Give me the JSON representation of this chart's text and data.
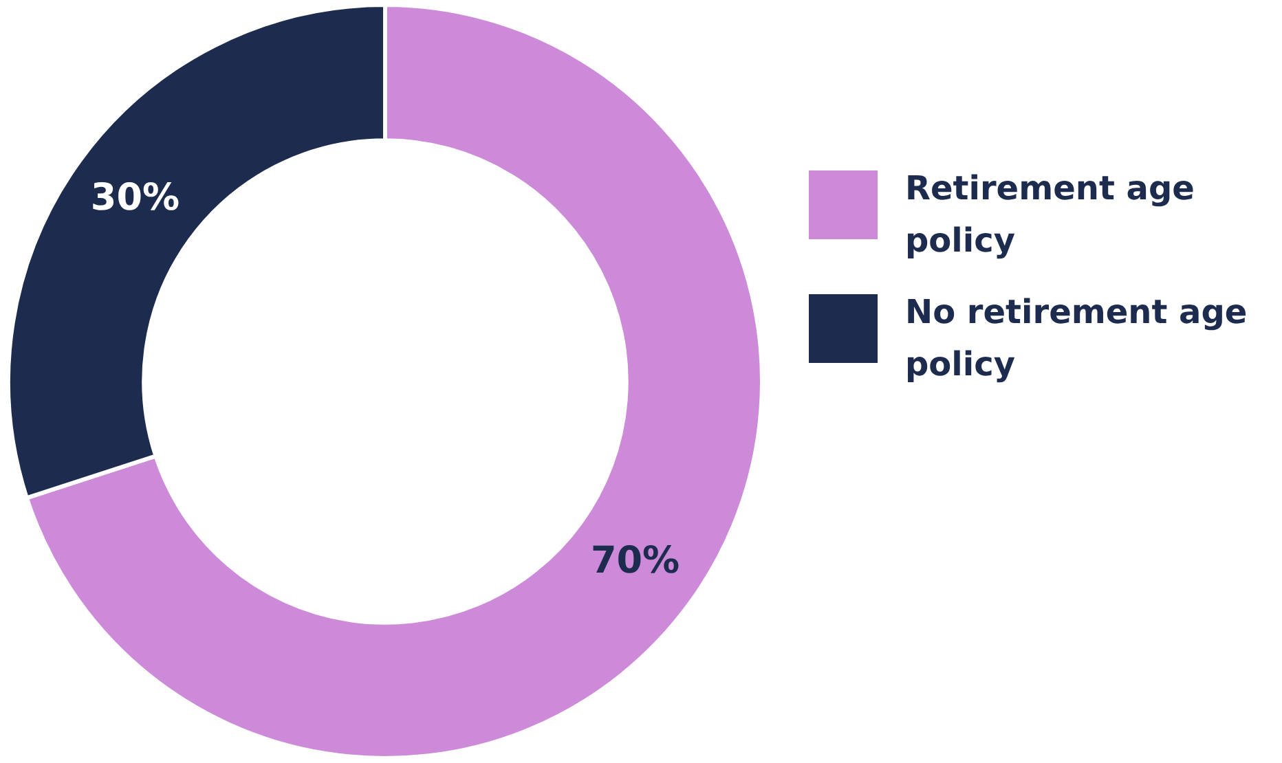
{
  "chart_data": {
    "type": "donut",
    "categories": [
      "Retirement age policy",
      "No retirement age policy"
    ],
    "values": [
      70,
      30
    ],
    "colors": [
      "#cd8ad9",
      "#1d2b4e"
    ],
    "value_labels": [
      "70%",
      "30%"
    ],
    "legend": "right"
  }
}
